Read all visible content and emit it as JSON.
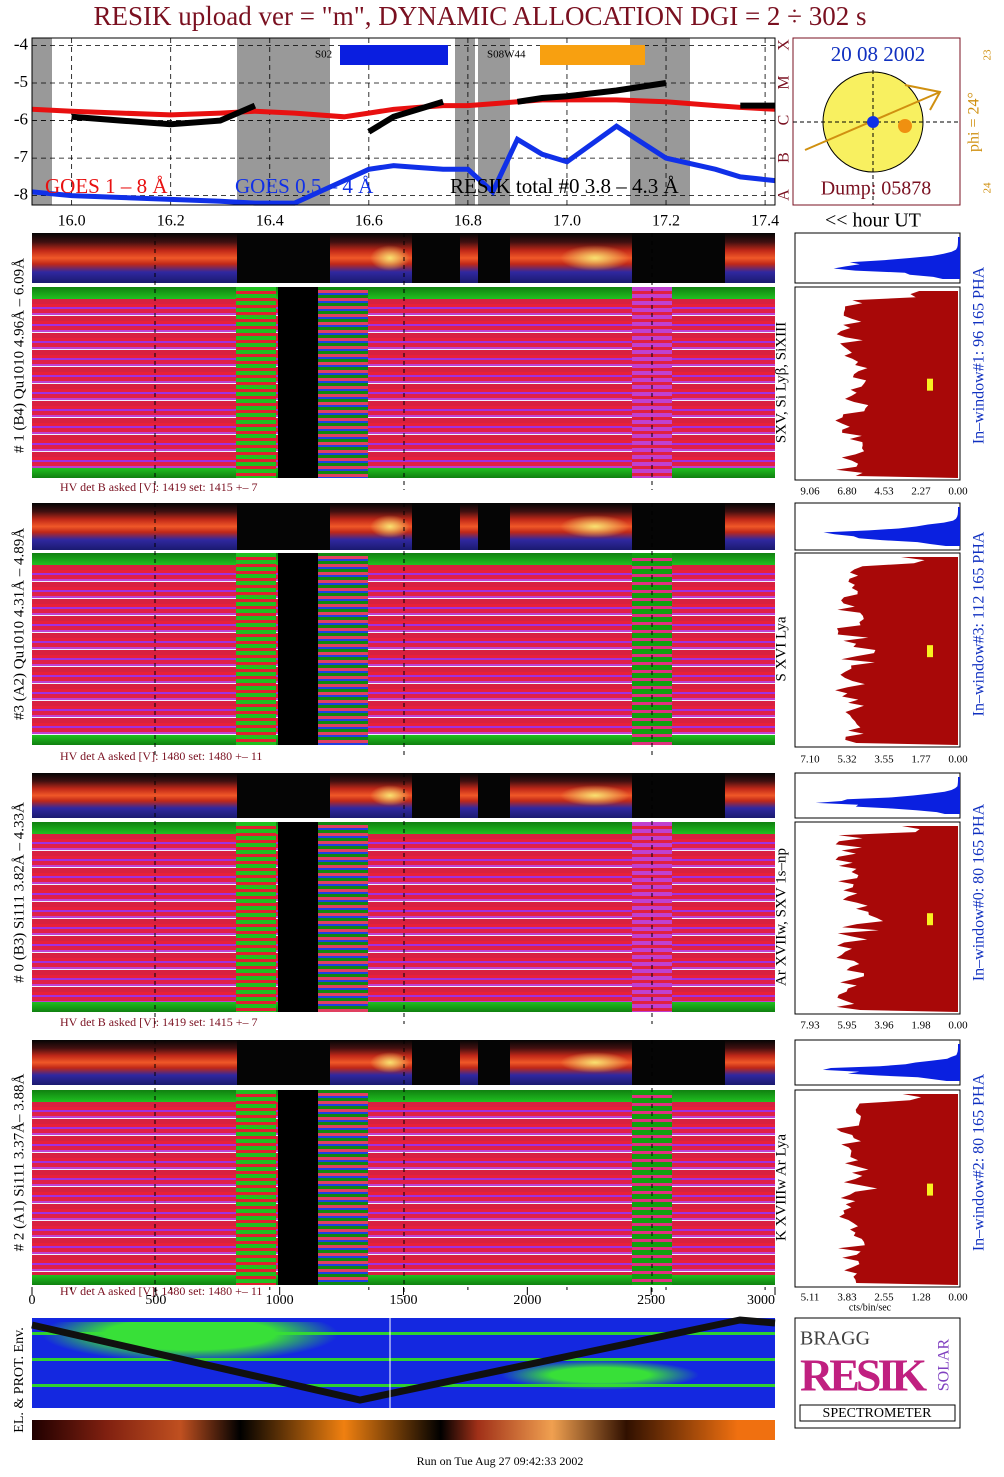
{
  "title": "RESIK upload ver = \"m\", DYNAMIC ALLOCATION  DGI =   2 ÷ 302 s",
  "chart_data": {
    "type": "line",
    "x": [
      15.92,
      16.0,
      16.1,
      16.2,
      16.3,
      16.37,
      16.45,
      16.55,
      16.6,
      16.65,
      16.7,
      16.75,
      16.8,
      16.85,
      16.9,
      16.95,
      17.0,
      17.1,
      17.2,
      17.3,
      17.35,
      17.42
    ],
    "series": [
      {
        "name": "GOES 1 – 8 Å",
        "color": "#e81010",
        "values": [
          -5.7,
          -5.75,
          -5.8,
          -5.85,
          -5.8,
          -5.75,
          -5.8,
          -5.9,
          -5.8,
          -5.7,
          -5.65,
          -5.6,
          -5.6,
          -5.55,
          -5.5,
          -5.45,
          -5.45,
          -5.45,
          -5.5,
          -5.6,
          -5.65,
          -5.7
        ]
      },
      {
        "name": "GOES 0.5 – 4 Å",
        "color": "#1030e8",
        "values": [
          -7.9,
          -8.0,
          -8.05,
          -8.1,
          -8.15,
          -8.2,
          -8.2,
          -7.6,
          -7.3,
          -7.2,
          -7.25,
          -7.3,
          -7.3,
          -7.9,
          -6.5,
          -6.9,
          -7.1,
          -6.15,
          -7.0,
          -7.3,
          -7.5,
          -7.6
        ]
      },
      {
        "name": "RESIK total #0  3.8 – 4.3 Å",
        "color": "#000000",
        "values": [
          null,
          -5.9,
          -6.0,
          -6.1,
          -6.0,
          -5.6,
          null,
          null,
          -6.3,
          -5.9,
          -5.7,
          -5.5,
          null,
          null,
          -5.5,
          -5.4,
          -5.35,
          -5.2,
          -5.0,
          null,
          -5.6,
          -5.6
        ]
      }
    ],
    "xlim": [
      15.92,
      17.42
    ],
    "xticks": [
      {
        "value": 16.0,
        "label": "16.0"
      },
      16.2,
      16.4,
      16.6,
      16.8,
      {
        "value": 17.0,
        "label": "17.0"
      },
      17.2,
      17.4
    ],
    "ylim": [
      -8.25,
      -3.8
    ],
    "yticks": [
      -4,
      -5,
      -6,
      -7,
      -8
    ],
    "grid": true,
    "x_label": "<< hour UT"
  },
  "sun_box": {
    "date": "20 08 2002",
    "dump": "Dump: 05878",
    "phi": "phi = 24°",
    "lat_top": "23",
    "lat_bottom": "24",
    "classes": [
      "X",
      "M",
      "C",
      "B",
      "A"
    ]
  },
  "regions": [
    "S02",
    "S08W44"
  ],
  "detectors": [
    {
      "label": "# 1 (B4) Qu1010 4.96Å – 6.09Å",
      "lines": "SXV, Si Lyβ, SiXIII",
      "window": "In–window#1:  96 165  PHA",
      "hv": "HV det B asked [V]:  1419 set:  1415 +–   7",
      "pha_ticks": [
        "9.06",
        "6.80",
        "4.53",
        "2.27",
        "0.00"
      ]
    },
    {
      "label": "#3 (A2) Qu1010  4.31Å – 4.89Å",
      "lines": "S XVI Lya",
      "window": "In–window#3:  112 165 PHA",
      "hv": "HV det A asked [V]:  1480 set:  1480 +–   11",
      "pha_ticks": [
        "7.10",
        "5.32",
        "3.55",
        "1.77",
        "0.00"
      ]
    },
    {
      "label": "# 0 (B3) Si111  3.82Å – 4.33Å",
      "lines": "Ar XVIIw,  SXV 1s–np",
      "window": "In–window#0:  80 165 PHA",
      "hv": "HV det B asked [V]:  1419 set:  1415 +–   7",
      "pha_ticks": [
        "7.93",
        "5.95",
        "3.96",
        "1.98",
        "0.00"
      ]
    },
    {
      "label": "# 2 (A1) Si111  3.37Å– 3.88Å",
      "lines": "K XVIIIw  Ar Lya",
      "window": "In–window#2:  80 165 PHA",
      "hv": "HV det A asked [V]:  1480 set:  1480 +–   11",
      "pha_ticks": [
        "5.11",
        "3.83",
        "2.55",
        "1.28",
        "0.00"
      ]
    }
  ],
  "pha_unit": "cts/bin/sec",
  "bin_axis": {
    "lim": [
      0,
      3000
    ],
    "ticks": [
      0,
      500,
      1000,
      1500,
      2000,
      2500,
      3000
    ]
  },
  "env_label": "EL. & PROT. Env.",
  "logo": {
    "top": "BRAGG",
    "middle": "RESIK",
    "side": "SOLAR",
    "bottom": "SPECTROMETER"
  },
  "footer": "Run on Tue Aug 27 09:42:33 2002"
}
